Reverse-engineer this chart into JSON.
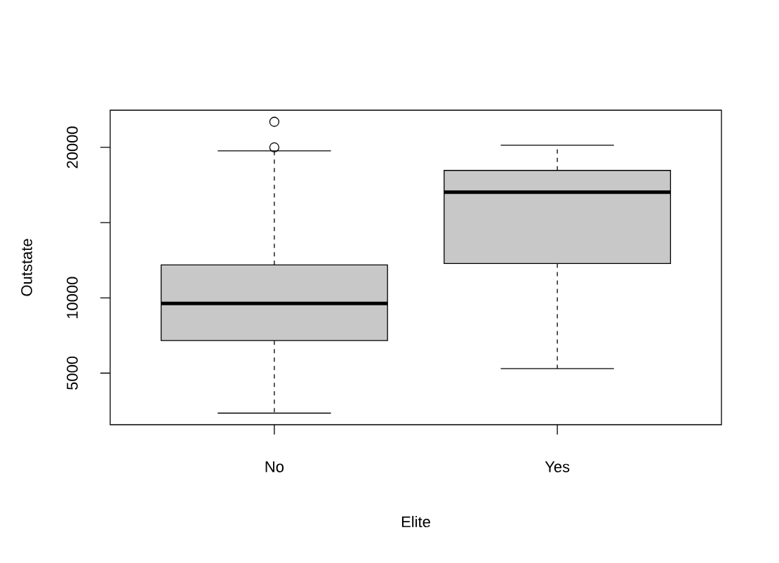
{
  "chart_data": {
    "type": "box",
    "xlabel": "Elite",
    "ylabel": "Outstate",
    "categories": [
      "No",
      "Yes"
    ],
    "color": "#c8c8c8",
    "boxes": [
      {
        "low": 2340,
        "q1": 7160,
        "median": 9630,
        "q3": 12190,
        "high": 19770,
        "outliers": [
          21700,
          20000
        ]
      },
      {
        "low": 5300,
        "q1": 12280,
        "median": 17020,
        "q3": 18470,
        "high": 20140
      }
    ],
    "ylim": [
      1570,
      22470
    ],
    "yticks": [
      5000,
      10000,
      {
        "value": 15000,
        "label": null
      },
      20000
    ]
  }
}
